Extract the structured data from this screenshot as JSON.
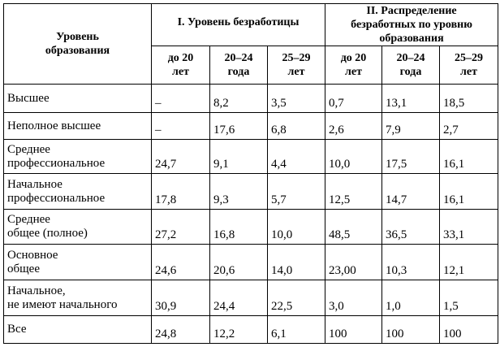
{
  "header": {
    "row_label": [
      "Уровень",
      "образования"
    ],
    "groups": [
      [
        "I. Уровень безработицы"
      ],
      [
        "II. Распределение",
        "безработных по уровню",
        "образования"
      ]
    ],
    "subheaders": [
      [
        "до 20",
        "лет"
      ],
      [
        "20–24",
        "года"
      ],
      [
        "25–29",
        "лет"
      ],
      [
        "до 20",
        "лет"
      ],
      [
        "20–24",
        "года"
      ],
      [
        "25–29",
        "лет"
      ]
    ]
  },
  "rows": [
    {
      "label": [
        "Высшее"
      ],
      "cells": [
        "–",
        "8,2",
        "3,5",
        "0,7",
        "13,1",
        "18,5"
      ]
    },
    {
      "label": [
        "Неполное высшее"
      ],
      "cells": [
        "–",
        "17,6",
        "6,8",
        "2,6",
        "7,9",
        "2,7"
      ]
    },
    {
      "label": [
        "Среднее",
        "профессиональное"
      ],
      "cells": [
        "24,7",
        "9,1",
        "4,4",
        "10,0",
        "17,5",
        "16,1"
      ]
    },
    {
      "label": [
        "Начальное",
        "профессиональное"
      ],
      "cells": [
        "17,8",
        "9,3",
        "5,7",
        "12,5",
        "14,7",
        "16,1"
      ]
    },
    {
      "label": [
        "Среднее",
        "общее (полное)"
      ],
      "cells": [
        "27,2",
        "16,8",
        "10,0",
        "48,5",
        "36,5",
        "33,1"
      ]
    },
    {
      "label": [
        "Основное",
        "общее"
      ],
      "cells": [
        "24,6",
        "20,6",
        "14,0",
        "23,00",
        "10,3",
        "12,1"
      ]
    },
    {
      "label": [
        "Начальное,",
        "не имеют начального"
      ],
      "cells": [
        "30,9",
        "24,4",
        "22,5",
        "3,0",
        "1,0",
        "1,5"
      ]
    },
    {
      "label": [
        "Все"
      ],
      "cells": [
        "24,8",
        "12,2",
        "6,1",
        "100",
        "100",
        "100"
      ]
    }
  ]
}
